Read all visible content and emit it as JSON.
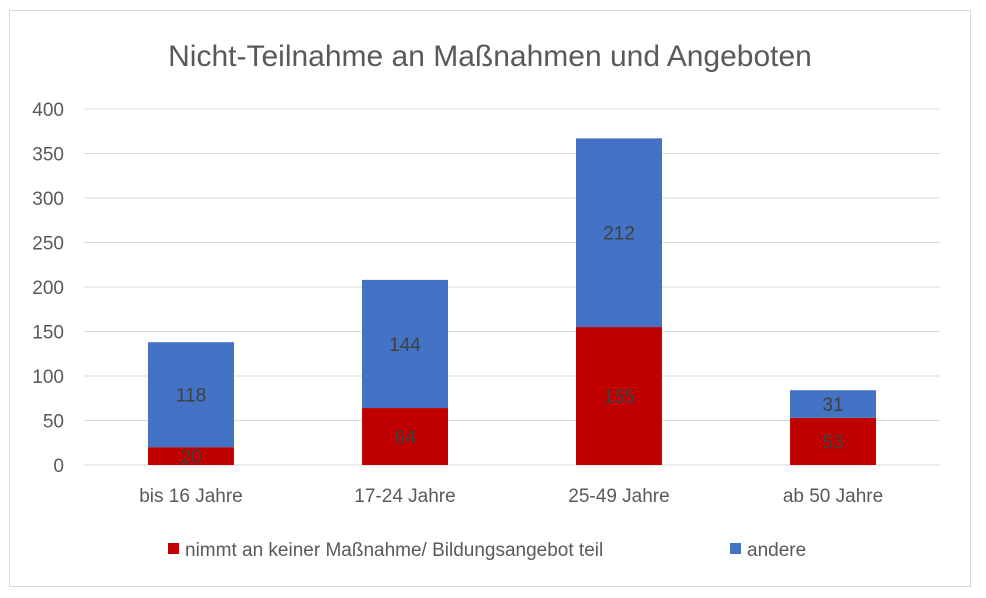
{
  "chart_data": {
    "type": "bar",
    "stacked": true,
    "title": "Nicht-Teilnahme an Maßnahmen und Angeboten",
    "categories": [
      "bis 16 Jahre",
      "17-24 Jahre",
      "25-49 Jahre",
      "ab 50 Jahre"
    ],
    "series": [
      {
        "name": "nimmt an keiner Maßnahme/ Bildungsangebot teil",
        "color": "#C00000",
        "values": [
          20,
          64,
          155,
          53
        ]
      },
      {
        "name": "andere",
        "color": "#4472C4",
        "values": [
          118,
          144,
          212,
          31
        ]
      }
    ],
    "ylim": [
      0,
      400
    ],
    "yticks": [
      0,
      50,
      100,
      150,
      200,
      250,
      300,
      350,
      400
    ],
    "grid": true,
    "legend_position": "bottom"
  }
}
